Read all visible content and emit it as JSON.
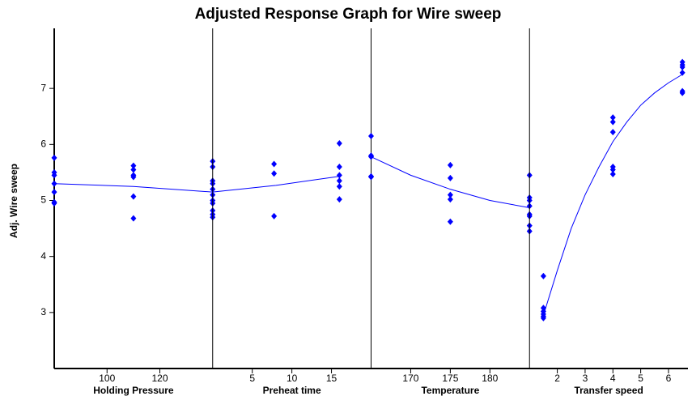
{
  "chart_data": {
    "type": "scatter",
    "title": "Adjusted Response Graph for Wire sweep",
    "ylabel": "Adj. Wire sweep",
    "ylim": [
      2,
      8
    ],
    "yticks": [
      3,
      4,
      5,
      6,
      7
    ],
    "color": "#0000ff",
    "panels": [
      {
        "xlabel": "Holding Pressure",
        "xlim": [
          80,
          140
        ],
        "xticks": [
          100,
          120
        ],
        "points": {
          "x": [
            80,
            80,
            80,
            80,
            80,
            80,
            80,
            110,
            110,
            110,
            110,
            110,
            110,
            140,
            140,
            140,
            140,
            140,
            140,
            140,
            140,
            140,
            140,
            140
          ],
          "y": [
            5.76,
            5.5,
            5.45,
            5.3,
            5.15,
            4.97,
            4.95,
            5.62,
            5.55,
            5.45,
            5.42,
            5.07,
            4.68,
            5.7,
            5.6,
            5.35,
            5.3,
            5.2,
            5.1,
            5.0,
            4.95,
            4.82,
            4.75,
            4.7
          ]
        },
        "curve": {
          "x": [
            80,
            110,
            140
          ],
          "y": [
            5.3,
            5.25,
            5.15
          ]
        }
      },
      {
        "xlabel": "Preheat time",
        "xlim": [
          0,
          20
        ],
        "xticks": [
          5,
          10,
          15
        ],
        "points": {
          "x": [
            7.75,
            7.75,
            7.75,
            16,
            16,
            16,
            16,
            16,
            16
          ],
          "y": [
            5.65,
            5.48,
            4.72,
            6.02,
            5.6,
            5.45,
            5.35,
            5.25,
            5.02
          ]
        },
        "curve": {
          "x": [
            0,
            8,
            16
          ],
          "y": [
            5.15,
            5.27,
            5.43
          ]
        }
      },
      {
        "xlabel": "Temperature",
        "xlim": [
          165,
          185
        ],
        "xticks": [
          170,
          175,
          180
        ],
        "points": {
          "x": [
            165,
            165,
            165,
            165,
            165,
            175,
            175,
            175,
            175,
            175,
            185,
            185,
            185,
            185,
            185,
            185,
            185,
            185
          ],
          "y": [
            6.15,
            5.8,
            5.78,
            5.43,
            5.42,
            5.63,
            5.4,
            5.1,
            5.02,
            4.62,
            5.45,
            5.05,
            5.0,
            4.9,
            4.75,
            4.72,
            4.55,
            4.45
          ]
        },
        "curve": {
          "x": [
            165,
            170,
            175,
            180,
            185
          ],
          "y": [
            5.78,
            5.45,
            5.2,
            5.0,
            4.87
          ]
        }
      },
      {
        "xlabel": "Transfer speed",
        "xlim": [
          1,
          6.7
        ],
        "xticks": [
          2,
          3,
          4,
          5,
          6
        ],
        "points": {
          "x": [
            1.5,
            1.5,
            1.5,
            1.5,
            1.5,
            1.5,
            4,
            4,
            4,
            4,
            4,
            4,
            6.5,
            6.5,
            6.5,
            6.5,
            6.5,
            6.5
          ],
          "y": [
            3.65,
            3.08,
            3.02,
            2.97,
            2.93,
            2.9,
            6.48,
            6.4,
            6.22,
            5.6,
            5.55,
            5.47,
            7.47,
            7.42,
            7.38,
            7.28,
            6.95,
            6.92
          ]
        },
        "curve": {
          "x": [
            1.5,
            2,
            2.5,
            3,
            3.5,
            4,
            4.5,
            5,
            5.5,
            6,
            6.5
          ],
          "y": [
            2.95,
            3.75,
            4.5,
            5.1,
            5.6,
            6.05,
            6.4,
            6.7,
            6.92,
            7.1,
            7.25
          ]
        }
      }
    ]
  }
}
